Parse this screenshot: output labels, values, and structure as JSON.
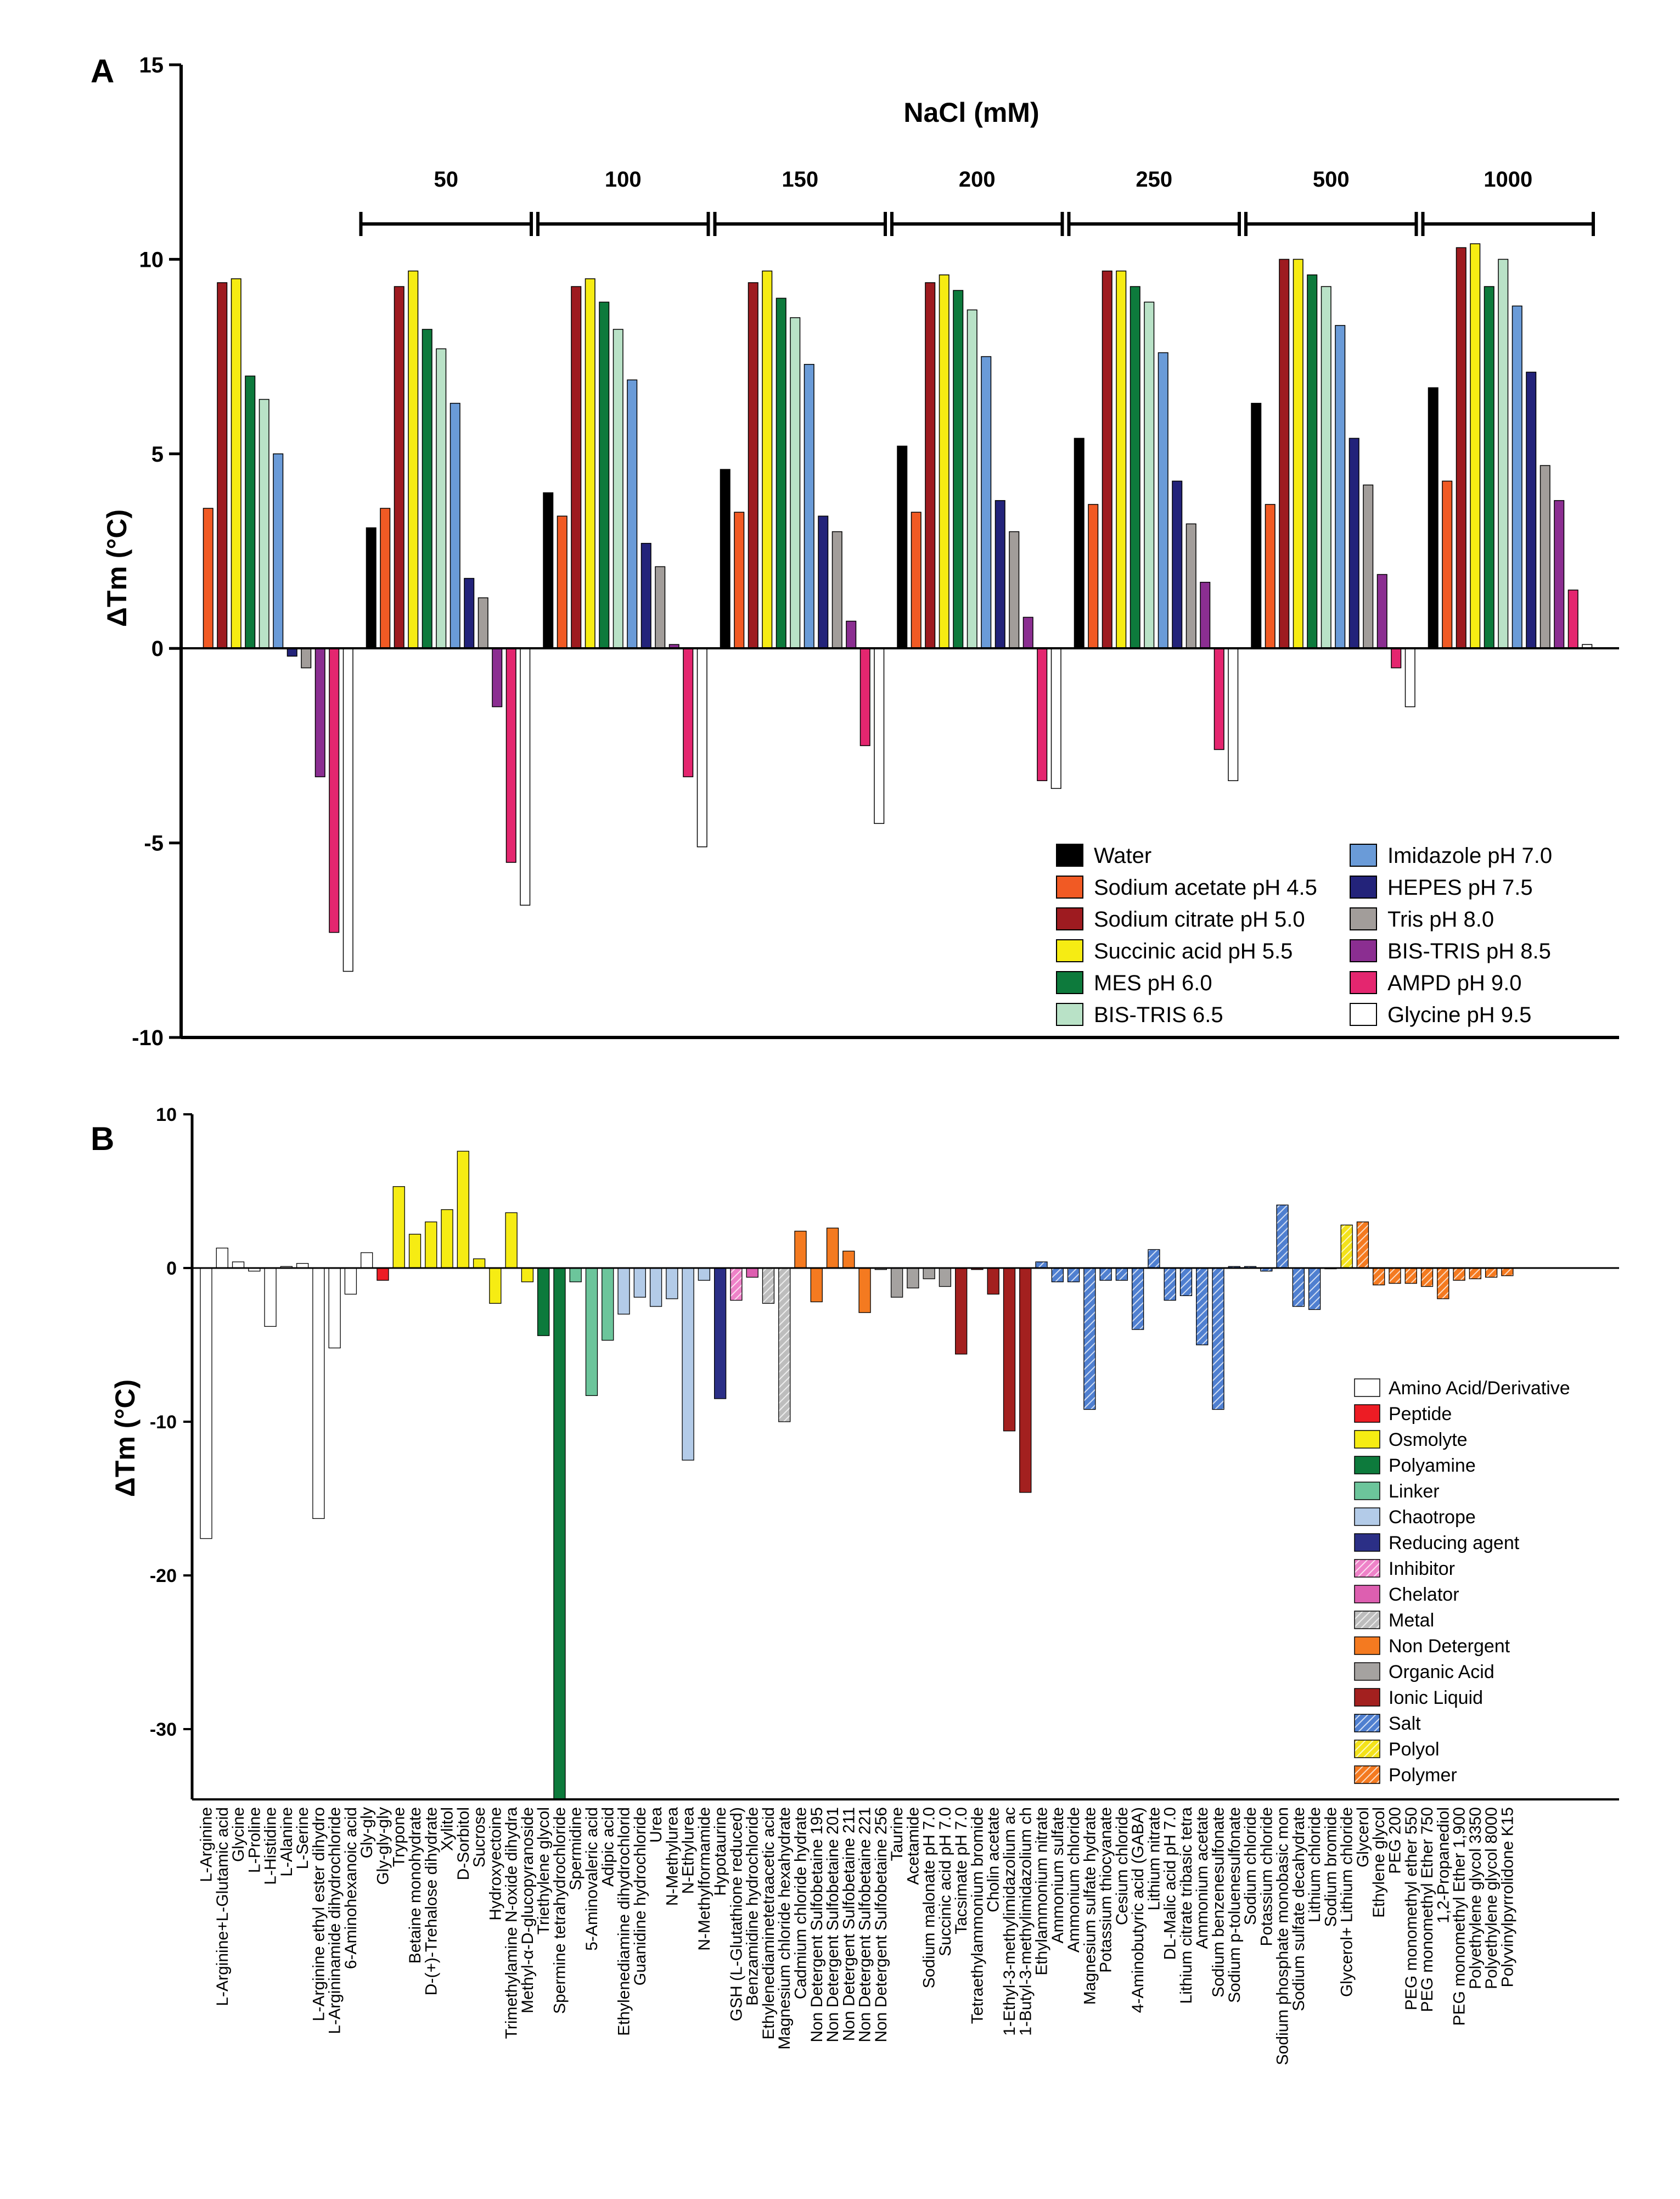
{
  "panel_a": {
    "letter": "A",
    "chart_data": {
      "type": "bar",
      "title": "NaCl (mM)",
      "ylabel": "ΔTm (°C)",
      "ylim": [
        -10,
        15
      ],
      "yticks": [
        "15",
        "10",
        "5",
        "0",
        "-5",
        "-10"
      ],
      "groups": [
        "0",
        "50",
        "100",
        "150",
        "200",
        "250",
        "500",
        "1000"
      ],
      "group_labels": [
        "",
        "50",
        "100",
        "150",
        "200",
        "250",
        "500",
        "1000"
      ],
      "series": [
        {
          "name": "Water",
          "color": "#000000",
          "hatch": false,
          "values": [
            null,
            3.1,
            4.0,
            4.6,
            5.2,
            5.4,
            6.3,
            6.7
          ]
        },
        {
          "name": "Sodium acetate  pH 4.5",
          "color": "#f15a24",
          "hatch": false,
          "values": [
            3.6,
            3.6,
            3.4,
            3.5,
            3.5,
            3.7,
            3.7,
            4.3
          ]
        },
        {
          "name": "Sodium citrate pH 5.0",
          "color": "#9e1b20",
          "hatch": false,
          "values": [
            9.4,
            9.3,
            9.3,
            9.4,
            9.4,
            9.7,
            10.0,
            10.3
          ]
        },
        {
          "name": "Succinic acid pH 5.5",
          "color": "#f6ec13",
          "hatch": false,
          "values": [
            9.5,
            9.7,
            9.5,
            9.7,
            9.6,
            9.7,
            10.0,
            10.4
          ]
        },
        {
          "name": "MES pH 6.0",
          "color": "#0d7a3c",
          "hatch": false,
          "values": [
            7.0,
            8.2,
            8.9,
            9.0,
            9.2,
            9.3,
            9.6,
            9.3
          ]
        },
        {
          "name": "BIS-TRIS 6.5",
          "color": "#b9e2c7",
          "hatch": false,
          "values": [
            6.4,
            7.7,
            8.2,
            8.5,
            8.7,
            8.9,
            9.3,
            10.0
          ]
        },
        {
          "name": "Imidazole pH 7.0",
          "color": "#6a9bd8",
          "hatch": false,
          "values": [
            5.0,
            6.3,
            6.9,
            7.3,
            7.5,
            7.6,
            8.3,
            8.8
          ]
        },
        {
          "name": "HEPES pH 7.5",
          "color": "#23237a",
          "hatch": false,
          "values": [
            -0.2,
            1.8,
            2.7,
            3.4,
            3.8,
            4.3,
            5.4,
            7.1
          ]
        },
        {
          "name": "Tris pH 8.0",
          "color": "#a29d9a",
          "hatch": false,
          "values": [
            -0.5,
            1.3,
            2.1,
            3.0,
            3.0,
            3.2,
            4.2,
            4.7
          ]
        },
        {
          "name": "BIS-TRIS pH 8.5",
          "color": "#8b2e91",
          "hatch": false,
          "values": [
            -3.3,
            -1.5,
            0.1,
            0.7,
            0.8,
            1.7,
            1.9,
            3.8
          ]
        },
        {
          "name": "AMPD pH 9.0",
          "color": "#e4266f",
          "hatch": false,
          "values": [
            -7.3,
            -5.5,
            -3.3,
            -2.5,
            -3.4,
            -2.6,
            -0.5,
            1.5
          ]
        },
        {
          "name": "Glycine pH 9.5",
          "color": "#ffffff",
          "hatch": false,
          "values": [
            -8.3,
            -6.6,
            -5.1,
            -4.5,
            -3.6,
            -3.4,
            -1.5,
            0.1
          ]
        }
      ]
    }
  },
  "panel_b": {
    "letter": "B",
    "chart_data": {
      "type": "bar",
      "title": "",
      "ylabel": "ΔTm (°C)",
      "ylim": [
        -35,
        10
      ],
      "yticks": [
        "10",
        "0",
        "-10",
        "-20",
        "-30"
      ],
      "class_colors": {
        "Amino Acid/Derivative": {
          "color": "#ffffff",
          "hatch": false
        },
        "Peptide": {
          "color": "#ed1c24",
          "hatch": false
        },
        "Osmolyte": {
          "color": "#f6ec13",
          "hatch": false
        },
        "Polyamine": {
          "color": "#0d7a3c",
          "hatch": false
        },
        "Linker": {
          "color": "#6cc59b",
          "hatch": false
        },
        "Chaotrope": {
          "color": "#b3cbe8",
          "hatch": false
        },
        "Reducing agent": {
          "color": "#2b2f86",
          "hatch": false
        },
        "Inhibitor": {
          "color": "#ee82c8",
          "hatch": true
        },
        "Chelator": {
          "color": "#dd5fb0",
          "hatch": false
        },
        "Metal": {
          "color": "#bdbdbd",
          "hatch": true
        },
        "Non Detergent": {
          "color": "#f47a20",
          "hatch": false
        },
        "Organic Acid": {
          "color": "#a5a2a0",
          "hatch": false
        },
        "Ionic Liquid": {
          "color": "#a3201f",
          "hatch": false
        },
        "Salt": {
          "color": "#4f7fd0",
          "hatch": true
        },
        "Polyol": {
          "color": "#f3e21a",
          "hatch": true
        },
        "Polymer": {
          "color": "#f47a20",
          "hatch": true
        }
      },
      "legend": [
        "Amino Acid/Derivative",
        "Peptide",
        "Osmolyte",
        "Polyamine",
        "Linker",
        "Chaotrope",
        "Reducing agent",
        "Inhibitor",
        "Chelator",
        "Metal",
        "Non Detergent",
        "Organic Acid",
        "Ionic Liquid",
        "Salt",
        "Polyol",
        "Polymer"
      ],
      "bars": [
        {
          "label": "L-Arginine",
          "value": -17.6,
          "class": "Amino Acid/Derivative"
        },
        {
          "label": "L-Arginine+L-Glutamic acid",
          "value": 1.3,
          "class": "Amino Acid/Derivative"
        },
        {
          "label": "Glycine",
          "value": 0.4,
          "class": "Amino Acid/Derivative"
        },
        {
          "label": "L-Proline",
          "value": -0.2,
          "class": "Amino Acid/Derivative"
        },
        {
          "label": "L-Histidine",
          "value": -3.8,
          "class": "Amino Acid/Derivative"
        },
        {
          "label": "L-Alanine",
          "value": 0.1,
          "class": "Amino Acid/Derivative"
        },
        {
          "label": "L-Serine",
          "value": 0.3,
          "class": "Amino Acid/Derivative"
        },
        {
          "label": "L-Arginine ethyl ester dihydro",
          "value": -16.3,
          "class": "Amino Acid/Derivative"
        },
        {
          "label": "L-Argininamide dihydrochloride",
          "value": -5.2,
          "class": "Amino Acid/Derivative"
        },
        {
          "label": "6-Aminohexanoic acid",
          "value": -1.7,
          "class": "Amino Acid/Derivative"
        },
        {
          "label": "Gly-gly",
          "value": 1.0,
          "class": "Amino Acid/Derivative"
        },
        {
          "label": "Gly-gly-gly",
          "value": -0.8,
          "class": "Peptide"
        },
        {
          "label": "Trypone",
          "value": 5.3,
          "class": "Osmolyte"
        },
        {
          "label": "Betaine monohydrate",
          "value": 2.2,
          "class": "Osmolyte"
        },
        {
          "label": "D-(+)-Trehalose dihydrate",
          "value": 3.0,
          "class": "Osmolyte"
        },
        {
          "label": "Xylitol",
          "value": 3.8,
          "class": "Osmolyte"
        },
        {
          "label": "D-Sorbitol",
          "value": 7.6,
          "class": "Osmolyte"
        },
        {
          "label": "Sucrose",
          "value": 0.6,
          "class": "Osmolyte"
        },
        {
          "label": "Hydroxyectoine",
          "value": -2.3,
          "class": "Osmolyte"
        },
        {
          "label": "Trimethylamine N-oxide dihydra",
          "value": 3.6,
          "class": "Osmolyte"
        },
        {
          "label": "Methyl-α-D-glucopyranoside",
          "value": -0.9,
          "class": "Osmolyte"
        },
        {
          "label": "Triethylene glycol",
          "value": -4.4,
          "class": "Polyamine"
        },
        {
          "label": "Spermine tetrahydrochloride",
          "value": -34.6,
          "class": "Polyamine"
        },
        {
          "label": "Spermidine",
          "value": -0.9,
          "class": "Linker"
        },
        {
          "label": "5-Aminovaleric acid",
          "value": -8.3,
          "class": "Linker"
        },
        {
          "label": "Adipic acid",
          "value": -4.7,
          "class": "Linker"
        },
        {
          "label": "Ethylenediamine dihydrochlorid",
          "value": -3.0,
          "class": "Chaotrope"
        },
        {
          "label": "Guanidine hydrochloride",
          "value": -1.9,
          "class": "Chaotrope"
        },
        {
          "label": "Urea",
          "value": -2.5,
          "class": "Chaotrope"
        },
        {
          "label": "N-Methylurea",
          "value": -2.0,
          "class": "Chaotrope"
        },
        {
          "label": "N-Ethylurea",
          "value": -12.5,
          "class": "Chaotrope"
        },
        {
          "label": "N-Methylformamide",
          "value": -0.8,
          "class": "Chaotrope"
        },
        {
          "label": "Hypotaurine",
          "value": -8.5,
          "class": "Reducing agent"
        },
        {
          "label": "GSH (L-Glutathione reduced)",
          "value": -2.1,
          "class": "Inhibitor"
        },
        {
          "label": "Benzamidine hydrochloride",
          "value": -0.6,
          "class": "Chelator"
        },
        {
          "label": "Ethylenediaminetetraacetic acid",
          "value": -2.3,
          "class": "Metal"
        },
        {
          "label": "Magnesium chloride hexahydrate",
          "value": -10.0,
          "class": "Metal"
        },
        {
          "label": "Cadmium chloride hydrate",
          "value": 2.4,
          "class": "Non Detergent"
        },
        {
          "label": "Non Detergent Sulfobetaine 195",
          "value": -2.2,
          "class": "Non Detergent"
        },
        {
          "label": "Non Detergent Sulfobetaine 201",
          "value": 2.6,
          "class": "Non Detergent"
        },
        {
          "label": "Non Detergent Sulfobetaine 211",
          "value": 1.1,
          "class": "Non Detergent"
        },
        {
          "label": "Non Detergent Sulfobetaine 221",
          "value": -2.9,
          "class": "Non Detergent"
        },
        {
          "label": "Non Detergent Sulfobetaine 256",
          "value": -0.1,
          "class": "Organic Acid"
        },
        {
          "label": "Taurine",
          "value": -1.9,
          "class": "Organic Acid"
        },
        {
          "label": "Acetamide",
          "value": -1.3,
          "class": "Organic Acid"
        },
        {
          "label": "Sodium malonate pH 7.0",
          "value": -0.7,
          "class": "Organic Acid"
        },
        {
          "label": "Succinic acid pH 7.0",
          "value": -1.2,
          "class": "Organic Acid"
        },
        {
          "label": "Tacsimate pH 7.0",
          "value": -5.6,
          "class": "Ionic Liquid"
        },
        {
          "label": "Tetraethylammonium bromide",
          "value": -0.1,
          "class": "Ionic Liquid"
        },
        {
          "label": "Cholin acetate",
          "value": -1.7,
          "class": "Ionic Liquid"
        },
        {
          "label": "1-Ethyl-3-methylimidazolium ac",
          "value": -10.6,
          "class": "Ionic Liquid"
        },
        {
          "label": "1-Butyl-3-methylimidazolium ch",
          "value": -14.6,
          "class": "Ionic Liquid"
        },
        {
          "label": "Ethylammonium nitrate",
          "value": 0.4,
          "class": "Salt"
        },
        {
          "label": "Ammonium sulfate",
          "value": -0.9,
          "class": "Salt"
        },
        {
          "label": "Ammonium chloride",
          "value": -0.9,
          "class": "Salt"
        },
        {
          "label": "Magnesium sulfate hydrate",
          "value": -9.2,
          "class": "Salt"
        },
        {
          "label": "Potassium thiocyanate",
          "value": -0.8,
          "class": "Salt"
        },
        {
          "label": "Cesium chloride",
          "value": -0.8,
          "class": "Salt"
        },
        {
          "label": "4-Aminobutyric acid (GABA)",
          "value": -4.0,
          "class": "Salt"
        },
        {
          "label": "Lithium nitrate",
          "value": 1.2,
          "class": "Salt"
        },
        {
          "label": "DL-Malic acid pH 7.0",
          "value": -2.1,
          "class": "Salt"
        },
        {
          "label": "Lithium citrate tribasic tetra",
          "value": -1.8,
          "class": "Salt"
        },
        {
          "label": "Ammonium acetate",
          "value": -5.0,
          "class": "Salt"
        },
        {
          "label": "Sodium benzenesulfonate",
          "value": -9.2,
          "class": "Salt"
        },
        {
          "label": "Sodium p-toluenesulfonate",
          "value": 0.1,
          "class": "Salt"
        },
        {
          "label": "Sodium chloride",
          "value": 0.1,
          "class": "Salt"
        },
        {
          "label": "Potassium chloride",
          "value": -0.2,
          "class": "Salt"
        },
        {
          "label": "Sodium phosphate monobasic mon",
          "value": 4.1,
          "class": "Salt"
        },
        {
          "label": "Sodium sulfate decahydrate",
          "value": -2.5,
          "class": "Salt"
        },
        {
          "label": "Lithium chloride",
          "value": -2.7,
          "class": "Salt"
        },
        {
          "label": "Sodium bromide",
          "value": 0.0,
          "class": "Salt"
        },
        {
          "label": "Glycerol+ Lithium chloride",
          "value": 2.8,
          "class": "Polyol"
        },
        {
          "label": "Glycerol",
          "value": 3.0,
          "class": "Polymer"
        },
        {
          "label": "Ethylene glycol",
          "value": -1.1,
          "class": "Polymer"
        },
        {
          "label": "PEG 200",
          "value": -1.0,
          "class": "Polymer"
        },
        {
          "label": "PEG monomethyl ether 550",
          "value": -1.0,
          "class": "Polymer"
        },
        {
          "label": "PEG monomethyl Ether 750",
          "value": -1.2,
          "class": "Polymer"
        },
        {
          "label": "1,2-Propanediol",
          "value": -2.0,
          "class": "Polymer"
        },
        {
          "label": "PEG monomethyl Ether 1,900",
          "value": -0.8,
          "class": "Polymer"
        },
        {
          "label": "Polyethylene glycol 3350",
          "value": -0.7,
          "class": "Polymer"
        },
        {
          "label": "Polyethylene glycol 8000",
          "value": -0.6,
          "class": "Polymer"
        },
        {
          "label": "Polyvinylpyrrolidone K15",
          "value": -0.5,
          "class": "Polymer"
        }
      ]
    }
  }
}
